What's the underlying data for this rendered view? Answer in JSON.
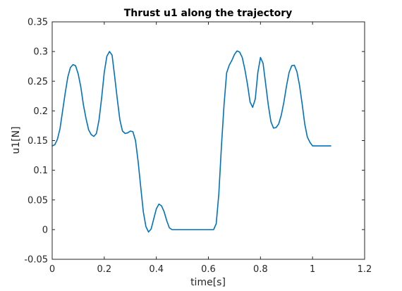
{
  "chart_data": {
    "type": "line",
    "title": "Thrust u1 along the trajectory",
    "xlabel": "time[s]",
    "ylabel": "u1[N]",
    "xlim": [
      0,
      1.2
    ],
    "ylim": [
      -0.05,
      0.35
    ],
    "xticks": [
      "0",
      "0.2",
      "0.4",
      "0.6",
      "0.8",
      "1",
      "1.2"
    ],
    "xtick_values": [
      0,
      0.2,
      0.4,
      0.6,
      0.8,
      1.0,
      1.2
    ],
    "yticks": [
      "-0.05",
      "0",
      "0.05",
      "0.1",
      "0.15",
      "0.2",
      "0.25",
      "0.3",
      "0.35"
    ],
    "ytick_values": [
      -0.05,
      0,
      0.05,
      0.1,
      0.15,
      0.2,
      0.25,
      0.3,
      0.35
    ],
    "grid": false,
    "box": true,
    "series": [
      {
        "color": "#0072bd",
        "x": [
          0,
          0.01,
          0.02,
          0.03,
          0.04,
          0.05,
          0.06,
          0.07,
          0.08,
          0.09,
          0.1,
          0.11,
          0.12,
          0.13,
          0.14,
          0.15,
          0.16,
          0.17,
          0.18,
          0.19,
          0.2,
          0.21,
          0.22,
          0.23,
          0.24,
          0.25,
          0.26,
          0.27,
          0.28,
          0.29,
          0.3,
          0.31,
          0.32,
          0.33,
          0.34,
          0.35,
          0.36,
          0.37,
          0.38,
          0.39,
          0.4,
          0.41,
          0.42,
          0.43,
          0.44,
          0.45,
          0.46,
          0.47,
          0.48,
          0.49,
          0.5,
          0.52,
          0.54,
          0.56,
          0.58,
          0.6,
          0.62,
          0.63,
          0.64,
          0.65,
          0.66,
          0.67,
          0.68,
          0.69,
          0.7,
          0.71,
          0.72,
          0.73,
          0.74,
          0.75,
          0.76,
          0.77,
          0.78,
          0.79,
          0.8,
          0.81,
          0.82,
          0.83,
          0.84,
          0.85,
          0.86,
          0.87,
          0.88,
          0.89,
          0.9,
          0.91,
          0.92,
          0.93,
          0.94,
          0.95,
          0.96,
          0.97,
          0.98,
          0.99,
          1.0,
          1.01,
          1.02,
          1.03,
          1.04,
          1.05,
          1.06,
          1.07
        ],
        "y": [
          0.141,
          0.143,
          0.152,
          0.17,
          0.2,
          0.23,
          0.257,
          0.273,
          0.278,
          0.276,
          0.262,
          0.24,
          0.21,
          0.187,
          0.168,
          0.16,
          0.157,
          0.162,
          0.185,
          0.222,
          0.265,
          0.292,
          0.3,
          0.294,
          0.258,
          0.22,
          0.185,
          0.166,
          0.162,
          0.163,
          0.166,
          0.165,
          0.15,
          0.115,
          0.072,
          0.03,
          0.005,
          -0.004,
          0.001,
          0.018,
          0.035,
          0.043,
          0.04,
          0.03,
          0.015,
          0.003,
          0.0,
          0.0,
          0.0,
          0.0,
          0.0,
          0.0,
          0.0,
          0.0,
          0.0,
          0.0,
          0.0,
          0.01,
          0.06,
          0.14,
          0.21,
          0.264,
          0.277,
          0.285,
          0.295,
          0.301,
          0.299,
          0.29,
          0.27,
          0.245,
          0.215,
          0.206,
          0.22,
          0.265,
          0.29,
          0.28,
          0.245,
          0.21,
          0.182,
          0.171,
          0.172,
          0.178,
          0.193,
          0.215,
          0.242,
          0.265,
          0.276,
          0.277,
          0.266,
          0.243,
          0.212,
          0.178,
          0.156,
          0.147,
          0.141,
          0.141,
          0.141,
          0.141,
          0.141,
          0.141,
          0.141,
          0.141
        ]
      }
    ]
  }
}
